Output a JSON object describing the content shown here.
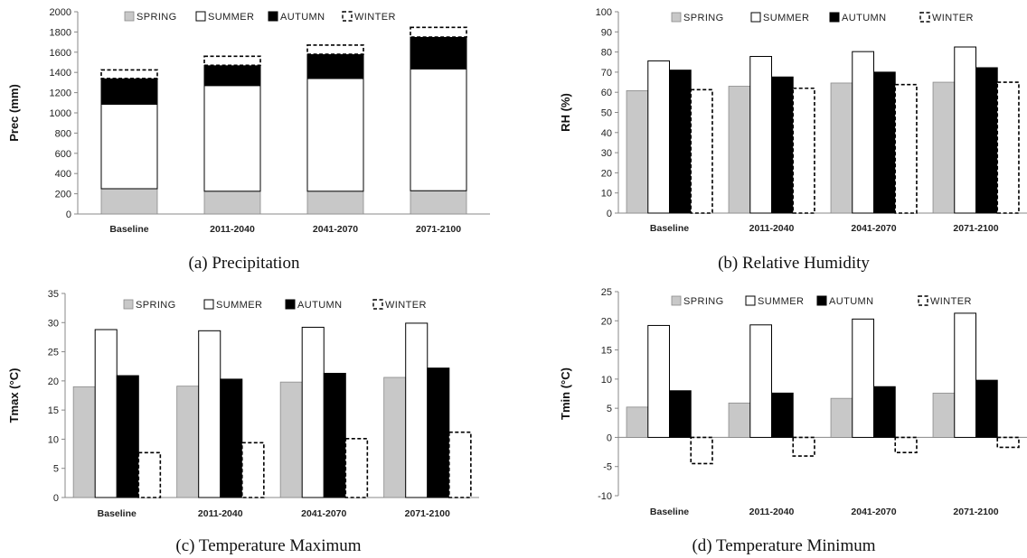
{
  "chart_data": [
    {
      "type": "bar",
      "stacked": true,
      "caption": "(a) Precipitation",
      "ylabel": "Prec (mm)",
      "xlabel": "",
      "categories": [
        "Baseline",
        "2011-2040",
        "2041-2070",
        "2071-2100"
      ],
      "ylim": [
        0,
        2000
      ],
      "yticks": [
        0,
        200,
        400,
        600,
        800,
        1000,
        1200,
        1400,
        1600,
        1800,
        2000
      ],
      "grid": false,
      "legend": "top",
      "series": [
        {
          "name": "SPRING",
          "values": [
            250,
            225,
            225,
            230
          ]
        },
        {
          "name": "SUMMER",
          "values": [
            835,
            1045,
            1115,
            1205
          ]
        },
        {
          "name": "AUTUMN",
          "values": [
            255,
            200,
            240,
            315
          ]
        },
        {
          "name": "WINTER",
          "values": [
            85,
            90,
            90,
            95
          ]
        }
      ]
    },
    {
      "type": "bar",
      "caption": "(b) Relative Humidity",
      "ylabel": "RH (%)",
      "xlabel": "",
      "categories": [
        "Baseline",
        "2011-2040",
        "2041-2070",
        "2071-2100"
      ],
      "ylim": [
        0,
        100
      ],
      "yticks": [
        0,
        10,
        20,
        30,
        40,
        50,
        60,
        70,
        80,
        90,
        100
      ],
      "grid": false,
      "legend": "top",
      "series": [
        {
          "name": "SPRING",
          "values": [
            60.8,
            63.0,
            64.6,
            65.0
          ]
        },
        {
          "name": "SUMMER",
          "values": [
            75.6,
            77.8,
            80.2,
            82.5
          ]
        },
        {
          "name": "AUTUMN",
          "values": [
            71.0,
            67.6,
            70.0,
            72.2
          ]
        },
        {
          "name": "WINTER",
          "values": [
            61.3,
            62.0,
            63.8,
            65.0
          ]
        }
      ]
    },
    {
      "type": "bar",
      "caption": "(c) Temperature Maximum",
      "ylabel": "Tmax (°C)",
      "xlabel": "",
      "categories": [
        "Baseline",
        "2011-2040",
        "2041-2070",
        "2071-2100"
      ],
      "ylim": [
        0,
        35
      ],
      "yticks": [
        0,
        5,
        10,
        15,
        20,
        25,
        30,
        35
      ],
      "grid": false,
      "legend": "top",
      "series": [
        {
          "name": "SPRING",
          "values": [
            19.0,
            19.1,
            19.8,
            20.6
          ]
        },
        {
          "name": "SUMMER",
          "values": [
            28.8,
            28.6,
            29.2,
            29.9
          ]
        },
        {
          "name": "AUTUMN",
          "values": [
            20.9,
            20.3,
            21.3,
            22.2
          ]
        },
        {
          "name": "WINTER",
          "values": [
            7.7,
            9.4,
            10.1,
            11.2
          ]
        }
      ]
    },
    {
      "type": "bar",
      "caption": "(d) Temperature Minimum",
      "ylabel": "Tmin (°C)",
      "xlabel": "",
      "categories": [
        "Baseline",
        "2011-2040",
        "2041-2070",
        "2071-2100"
      ],
      "ylim": [
        -10,
        25
      ],
      "yticks": [
        -10,
        -5,
        0,
        5,
        10,
        15,
        20,
        25
      ],
      "grid": false,
      "legend": "top",
      "series": [
        {
          "name": "SPRING",
          "values": [
            5.2,
            5.9,
            6.7,
            7.6
          ]
        },
        {
          "name": "SUMMER",
          "values": [
            19.2,
            19.3,
            20.3,
            21.3
          ]
        },
        {
          "name": "AUTUMN",
          "values": [
            8.0,
            7.6,
            8.7,
            9.8
          ]
        },
        {
          "name": "WINTER",
          "values": [
            -4.5,
            -3.2,
            -2.6,
            -1.7
          ]
        }
      ]
    }
  ],
  "colors": {
    "spring": "#c8c8c8",
    "summer": "#ffffff",
    "autumn": "#000000",
    "winter": "#ffffff"
  }
}
